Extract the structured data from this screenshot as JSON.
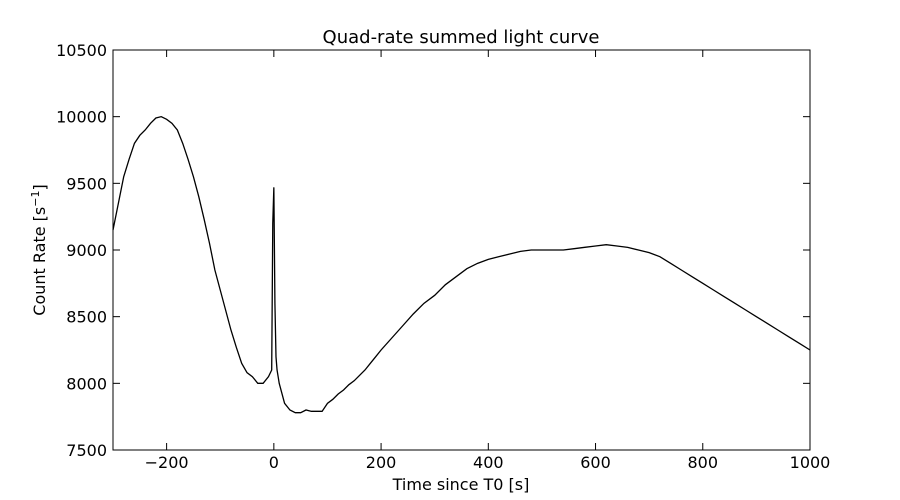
{
  "chart_data": {
    "type": "line",
    "title": "Quad-rate summed light curve",
    "xlabel": "Time since T0 [s]",
    "ylabel_main": "Count Rate [s",
    "ylabel_sup": "−1",
    "ylabel_end": "]",
    "xlim": [
      -300,
      1000
    ],
    "ylim": [
      7500,
      10500
    ],
    "xticks": [
      {
        "value": -200,
        "label": "−200"
      },
      {
        "value": 0,
        "label": "0"
      },
      {
        "value": 200,
        "label": "200"
      },
      {
        "value": 400,
        "label": "400"
      },
      {
        "value": 600,
        "label": "600"
      },
      {
        "value": 800,
        "label": "800"
      },
      {
        "value": 1000,
        "label": "1000"
      }
    ],
    "yticks": [
      {
        "value": 7500,
        "label": "7500"
      },
      {
        "value": 8000,
        "label": "8000"
      },
      {
        "value": 8500,
        "label": "8500"
      },
      {
        "value": 9000,
        "label": "9000"
      },
      {
        "value": 9500,
        "label": "9500"
      },
      {
        "value": 10000,
        "label": "10000"
      },
      {
        "value": 10500,
        "label": "10500"
      }
    ],
    "grid": false,
    "line_color": "#000000",
    "series": [
      {
        "x": [
          -300,
          -290,
          -280,
          -270,
          -260,
          -250,
          -240,
          -230,
          -220,
          -210,
          -200,
          -190,
          -180,
          -170,
          -160,
          -150,
          -140,
          -130,
          -120,
          -110,
          -100,
          -90,
          -80,
          -70,
          -60,
          -50,
          -40,
          -30,
          -20,
          -10,
          -4,
          -2,
          0,
          2,
          4,
          6,
          8,
          10,
          20,
          30,
          40,
          50,
          60,
          70,
          80,
          90,
          100,
          110,
          120,
          130,
          140,
          150,
          160,
          170,
          180,
          190,
          200,
          220,
          240,
          260,
          280,
          300,
          320,
          340,
          360,
          380,
          400,
          420,
          440,
          460,
          480,
          500,
          520,
          540,
          560,
          580,
          600,
          620,
          640,
          660,
          680,
          700,
          720,
          740,
          760,
          780,
          800,
          820,
          840,
          860,
          880,
          900,
          920,
          940,
          960,
          980,
          1000
        ],
        "y": [
          9150,
          9350,
          9550,
          9680,
          9800,
          9860,
          9900,
          9950,
          9990,
          10000,
          9980,
          9950,
          9900,
          9800,
          9680,
          9550,
          9400,
          9230,
          9050,
          8850,
          8700,
          8550,
          8400,
          8270,
          8150,
          8080,
          8050,
          8000,
          8000,
          8050,
          8100,
          9200,
          9470,
          8600,
          8200,
          8100,
          8050,
          8000,
          7850,
          7800,
          7780,
          7780,
          7800,
          7790,
          7790,
          7790,
          7850,
          7880,
          7920,
          7950,
          7990,
          8020,
          8060,
          8100,
          8150,
          8200,
          8250,
          8340,
          8430,
          8520,
          8600,
          8660,
          8740,
          8800,
          8860,
          8900,
          8930,
          8950,
          8970,
          8990,
          9000,
          9000,
          9000,
          9000,
          9010,
          9020,
          9030,
          9040,
          9030,
          9020,
          9000,
          8980,
          8950,
          8900,
          8850,
          8800,
          8750,
          8700,
          8650,
          8600,
          8550,
          8500,
          8450,
          8400,
          8350,
          8300,
          8250
        ]
      }
    ]
  }
}
